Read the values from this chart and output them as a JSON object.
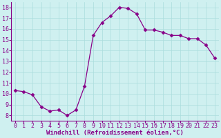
{
  "x": [
    0,
    1,
    2,
    3,
    4,
    5,
    6,
    7,
    8,
    9,
    10,
    11,
    12,
    13,
    14,
    15,
    16,
    17,
    18,
    19,
    20,
    21,
    22,
    23
  ],
  "y": [
    10.3,
    10.2,
    9.9,
    8.8,
    8.4,
    8.5,
    8.0,
    8.5,
    10.7,
    15.4,
    16.6,
    17.2,
    18.0,
    17.9,
    17.4,
    15.9,
    15.9,
    15.7,
    15.4,
    15.4,
    15.1,
    15.1,
    14.5,
    13.3
  ],
  "line_color": "#880088",
  "marker": "D",
  "marker_size": 2.5,
  "bg_color": "#cff0f0",
  "grid_color": "#aadddd",
  "xlabel": "Windchill (Refroidissement éolien,°C)",
  "xlim": [
    -0.5,
    23.5
  ],
  "ylim": [
    7.5,
    18.5
  ],
  "xtick_labels": [
    "0",
    "1",
    "2",
    "3",
    "4",
    "5",
    "6",
    "7",
    "8",
    "9",
    "10",
    "11",
    "12",
    "13",
    "14",
    "15",
    "16",
    "17",
    "18",
    "19",
    "20",
    "21",
    "22",
    "23"
  ],
  "ytick_values": [
    8,
    9,
    10,
    11,
    12,
    13,
    14,
    15,
    16,
    17,
    18
  ],
  "xlabel_fontsize": 6.5,
  "tick_fontsize": 6.0,
  "label_color": "#880088",
  "axis_color": "#880088"
}
